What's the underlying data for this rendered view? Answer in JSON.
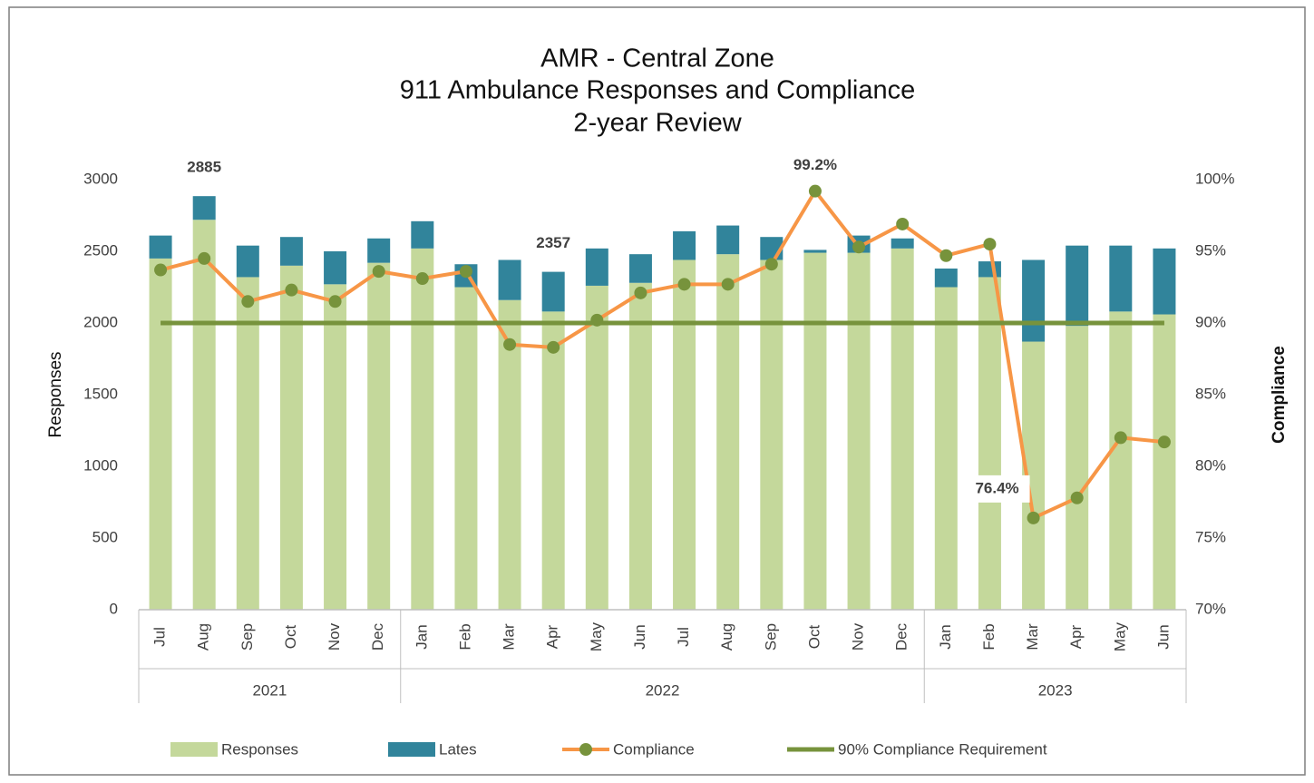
{
  "chart_data": {
    "type": "bar",
    "title": [
      "AMR - Central Zone",
      "911 Ambulance Responses and Compliance",
      "2-year Review"
    ],
    "y_label": "Responses",
    "y2_label": "Compliance",
    "categories": [
      "Jul",
      "Aug",
      "Sep",
      "Oct",
      "Nov",
      "Dec",
      "Jan",
      "Feb",
      "Mar",
      "Apr",
      "May",
      "Jun",
      "Jul",
      "Aug",
      "Sep",
      "Oct",
      "Nov",
      "Dec",
      "Jan",
      "Feb",
      "Mar",
      "Apr",
      "May",
      "Jun"
    ],
    "year_groups": [
      {
        "name": "2021",
        "size": 6
      },
      {
        "name": "2022",
        "size": 12
      },
      {
        "name": "2023",
        "size": 6
      }
    ],
    "series": [
      {
        "name": "Responses",
        "type": "bar",
        "color": "#c4d89b",
        "values": [
          2450,
          2720,
          2320,
          2400,
          2270,
          2420,
          2520,
          2250,
          2160,
          2080,
          2260,
          2280,
          2440,
          2480,
          2440,
          2490,
          2490,
          2520,
          2250,
          2320,
          1870,
          1980,
          2080,
          2060
        ]
      },
      {
        "name": "Lates",
        "type": "bar",
        "color": "#31849b",
        "values": [
          160,
          165,
          220,
          200,
          230,
          170,
          190,
          160,
          280,
          277,
          260,
          200,
          200,
          200,
          160,
          20,
          120,
          70,
          130,
          110,
          570,
          560,
          460,
          460
        ]
      },
      {
        "name": "Compliance",
        "type": "line",
        "axis": "y2",
        "color": "#f79646",
        "marker_color": "#77933c",
        "values": [
          93.7,
          94.5,
          91.5,
          92.3,
          91.5,
          93.6,
          93.1,
          93.6,
          88.5,
          88.3,
          90.2,
          92.1,
          92.7,
          92.7,
          94.1,
          99.2,
          95.3,
          96.9,
          94.7,
          95.5,
          76.4,
          77.8,
          82.0,
          81.7
        ],
        "value_labels": [
          null,
          null,
          null,
          null,
          null,
          null,
          null,
          null,
          null,
          null,
          null,
          null,
          null,
          null,
          null,
          "99.2%",
          null,
          null,
          null,
          null,
          "76.4%",
          null,
          null,
          null
        ]
      },
      {
        "name": "90% Compliance Requirement",
        "type": "line",
        "axis": "y2",
        "color": "#77933c",
        "values": [
          90,
          90,
          90,
          90,
          90,
          90,
          90,
          90,
          90,
          90,
          90,
          90,
          90,
          90,
          90,
          90,
          90,
          90,
          90,
          90,
          90,
          90,
          90,
          90
        ]
      }
    ],
    "total_labels": [
      {
        "index": 1,
        "text": "2885"
      },
      {
        "index": 9,
        "text": "2357"
      }
    ],
    "ylim": [
      0,
      3000
    ],
    "yticks": [
      0,
      500,
      1000,
      1500,
      2000,
      2500,
      3000
    ],
    "y2lim": [
      70,
      100
    ],
    "y2ticks": [
      {
        "value": 70,
        "label": "70%"
      },
      {
        "value": 75,
        "label": "75%"
      },
      {
        "value": 80,
        "label": "80%"
      },
      {
        "value": 85,
        "label": "85%"
      },
      {
        "value": 90,
        "label": "90%"
      },
      {
        "value": 95,
        "label": "95%"
      },
      {
        "value": 100,
        "label": "100%"
      }
    ],
    "grid": false
  }
}
